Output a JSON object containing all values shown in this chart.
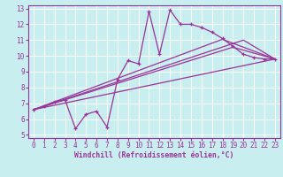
{
  "title": "",
  "xlabel": "Windchill (Refroidissement éolien,°C)",
  "ylabel": "",
  "bg_color": "#c8eef0",
  "line_color": "#993399",
  "grid_color": "#aadddd",
  "xlim": [
    -0.5,
    23.5
  ],
  "ylim": [
    4.8,
    13.2
  ],
  "xticks": [
    0,
    1,
    2,
    3,
    4,
    5,
    6,
    7,
    8,
    9,
    10,
    11,
    12,
    13,
    14,
    15,
    16,
    17,
    18,
    19,
    20,
    21,
    22,
    23
  ],
  "yticks": [
    5,
    6,
    7,
    8,
    9,
    10,
    11,
    12,
    13
  ],
  "line1_x": [
    0,
    1,
    2,
    3,
    4,
    5,
    6,
    7,
    8,
    9,
    10,
    11,
    12,
    13,
    14,
    15,
    16,
    17,
    18,
    19,
    20,
    21,
    22,
    23
  ],
  "line1_y": [
    6.6,
    6.8,
    7.1,
    7.2,
    5.4,
    6.3,
    6.5,
    5.5,
    8.5,
    9.7,
    9.5,
    12.8,
    10.1,
    12.9,
    12.0,
    12.0,
    11.8,
    11.5,
    11.1,
    10.6,
    10.1,
    9.9,
    9.8,
    9.8
  ],
  "line2_x": [
    0,
    23
  ],
  "line2_y": [
    6.6,
    9.8
  ],
  "line3_x": [
    0,
    19,
    23
  ],
  "line3_y": [
    6.6,
    10.55,
    9.8
  ],
  "line4_x": [
    0,
    18,
    23
  ],
  "line4_y": [
    6.6,
    11.05,
    9.8
  ],
  "line5_x": [
    0,
    20,
    23
  ],
  "line5_y": [
    6.6,
    11.0,
    9.8
  ]
}
